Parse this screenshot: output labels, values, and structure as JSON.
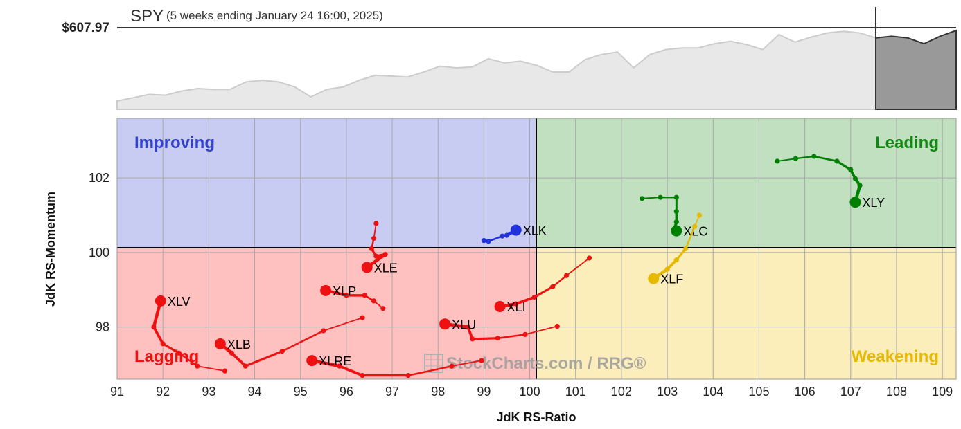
{
  "header": {
    "symbol": "SPY",
    "period": "(5 weeks ending January 24 16:00, 2025)",
    "price": "$607.97"
  },
  "price_chart": {
    "values": [
      0.1,
      0.14,
      0.18,
      0.17,
      0.22,
      0.25,
      0.24,
      0.24,
      0.33,
      0.35,
      0.33,
      0.27,
      0.15,
      0.24,
      0.27,
      0.35,
      0.41,
      0.4,
      0.39,
      0.45,
      0.52,
      0.5,
      0.51,
      0.61,
      0.56,
      0.58,
      0.53,
      0.45,
      0.45,
      0.6,
      0.66,
      0.69,
      0.5,
      0.66,
      0.72,
      0.74,
      0.74,
      0.79,
      0.82,
      0.78,
      0.72,
      0.9,
      0.81,
      0.87,
      0.92,
      0.94,
      0.92,
      0.86
    ],
    "shaded_values": [
      0.86,
      0.88,
      0.86,
      0.79,
      0.88,
      0.95
    ]
  },
  "chart_data": {
    "type": "scatter",
    "xlabel": "JdK RS-Ratio",
    "ylabel": "JdK RS-Momentum",
    "xlim": [
      91,
      109.3
    ],
    "ylim": [
      96.6,
      103.6
    ],
    "xticks": [
      "91",
      "92",
      "93",
      "94",
      "95",
      "96",
      "97",
      "98",
      "99",
      "100",
      "101",
      "102",
      "103",
      "104",
      "105",
      "106",
      "107",
      "108",
      "109"
    ],
    "yticks": [
      "98",
      "100",
      "102"
    ],
    "quadrants": {
      "improving": "Improving",
      "leading": "Leading",
      "lagging": "Lagging",
      "weakening": "Weakening"
    },
    "watermark": "StockCharts.com / RRG®",
    "series": [
      {
        "name": "XLY",
        "color": "#008000",
        "x": [
          105.4,
          105.8,
          106.2,
          106.7,
          107.0,
          107.1,
          107.2,
          107.1
        ],
        "y": [
          102.45,
          102.52,
          102.58,
          102.45,
          102.22,
          101.98,
          101.8,
          101.35
        ]
      },
      {
        "name": "XLC",
        "color": "#008000",
        "x": [
          102.45,
          102.85,
          103.2,
          103.2,
          103.2,
          103.15,
          103.2
        ],
        "y": [
          101.45,
          101.48,
          101.48,
          101.1,
          100.82,
          100.6,
          100.58
        ]
      },
      {
        "name": "XLF",
        "color": "#e6b800",
        "x": [
          103.7,
          103.6,
          103.4,
          103.2,
          103.0,
          102.7
        ],
        "y": [
          101.0,
          100.7,
          100.1,
          99.8,
          99.55,
          99.3
        ]
      },
      {
        "name": "XLK",
        "color": "#2233dd",
        "x": [
          99.0,
          99.1,
          99.4,
          99.5,
          99.7
        ],
        "y": [
          100.32,
          100.3,
          100.44,
          100.46,
          100.6
        ]
      },
      {
        "name": "XLE",
        "color": "#ee1111",
        "x": [
          96.65,
          96.6,
          96.55,
          96.65,
          96.85,
          96.45
        ],
        "y": [
          100.78,
          100.38,
          100.1,
          99.9,
          99.95,
          99.6
        ]
      },
      {
        "name": "XLP",
        "color": "#ee1111",
        "x": [
          96.8,
          96.6,
          96.4,
          96.0,
          95.55
        ],
        "y": [
          98.5,
          98.7,
          98.85,
          98.85,
          98.98
        ]
      },
      {
        "name": "XLI",
        "color": "#ee1111",
        "x": [
          101.3,
          100.8,
          100.5,
          100.1,
          99.7,
          99.35
        ],
        "y": [
          99.85,
          99.38,
          99.08,
          98.8,
          98.62,
          98.55
        ]
      },
      {
        "name": "XLU",
        "color": "#ee1111",
        "x": [
          100.6,
          99.9,
          99.3,
          98.75,
          98.65,
          98.15
        ],
        "y": [
          98.02,
          97.8,
          97.7,
          97.68,
          98.0,
          98.08
        ]
      },
      {
        "name": "XLV",
        "color": "#ee1111",
        "x": [
          93.35,
          92.75,
          92.35,
          92.0,
          91.8,
          91.95
        ],
        "y": [
          96.82,
          96.95,
          97.3,
          97.55,
          98.0,
          98.7
        ]
      },
      {
        "name": "XLB",
        "color": "#ee1111",
        "x": [
          96.35,
          95.5,
          94.6,
          93.8,
          93.5,
          93.25
        ],
        "y": [
          98.25,
          97.9,
          97.35,
          96.95,
          97.3,
          97.55
        ]
      },
      {
        "name": "XLRE",
        "color": "#ee1111",
        "x": [
          98.95,
          98.3,
          97.35,
          96.35,
          95.85,
          95.25
        ],
        "y": [
          97.1,
          96.95,
          96.7,
          96.7,
          96.95,
          97.1
        ]
      }
    ]
  }
}
